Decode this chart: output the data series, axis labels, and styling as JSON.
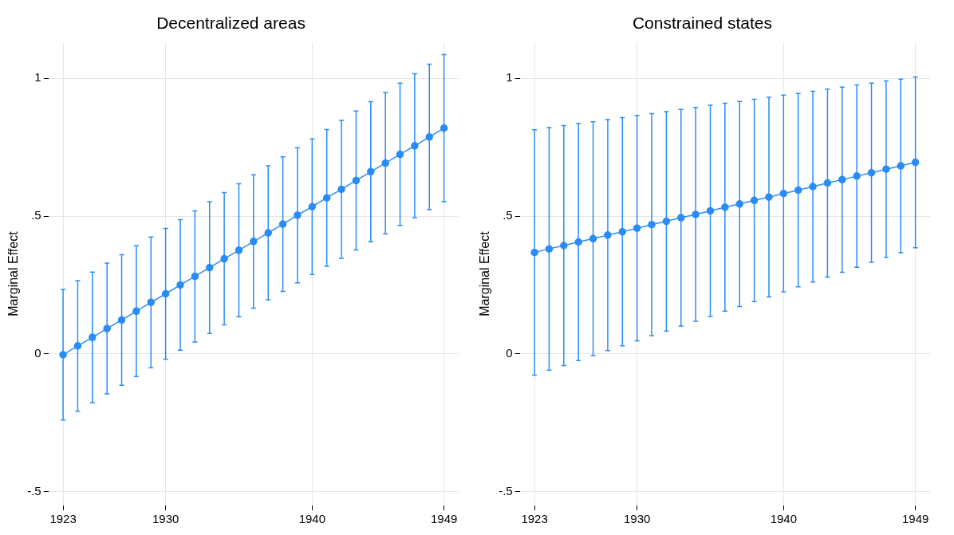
{
  "chart_data": [
    {
      "type": "line",
      "title": "Decentralized areas",
      "ylabel": "Marginal Effect",
      "x": [
        1923,
        1924,
        1925,
        1926,
        1927,
        1928,
        1929,
        1930,
        1931,
        1932,
        1933,
        1934,
        1935,
        1936,
        1937,
        1938,
        1939,
        1940,
        1941,
        1942,
        1943,
        1944,
        1945,
        1946,
        1947,
        1948,
        1949
      ],
      "series": [
        {
          "color": "#2a8cf5",
          "values": [
            -0.003,
            0.029,
            0.06,
            0.092,
            0.123,
            0.155,
            0.187,
            0.218,
            0.25,
            0.281,
            0.313,
            0.345,
            0.376,
            0.408,
            0.439,
            0.471,
            0.503,
            0.534,
            0.566,
            0.597,
            0.629,
            0.661,
            0.692,
            0.724,
            0.755,
            0.787,
            0.819
          ],
          "errors": [
            0.237,
            0.237,
            0.237,
            0.237,
            0.237,
            0.237,
            0.237,
            0.237,
            0.237,
            0.238,
            0.239,
            0.24,
            0.241,
            0.242,
            0.243,
            0.244,
            0.245,
            0.246,
            0.248,
            0.25,
            0.252,
            0.254,
            0.256,
            0.258,
            0.261,
            0.264,
            0.267
          ]
        }
      ],
      "xlim": [
        1922,
        1950
      ],
      "xticks": [
        1923,
        1930,
        1940,
        1949
      ],
      "ylim": [
        -0.55,
        1.13
      ],
      "yticks": [
        {
          "value": -0.5,
          "label": "-.5"
        },
        {
          "value": 0,
          "label": "0"
        },
        {
          "value": 0.5,
          "label": ".5"
        },
        {
          "value": 1,
          "label": "1"
        }
      ],
      "grid": true,
      "marker": "circle",
      "line_style": "solid",
      "legend": false
    },
    {
      "type": "line",
      "title": "Constrained states",
      "ylabel": "Marginal Effect",
      "x": [
        1923,
        1924,
        1925,
        1926,
        1927,
        1928,
        1929,
        1930,
        1931,
        1932,
        1933,
        1934,
        1935,
        1936,
        1937,
        1938,
        1939,
        1940,
        1941,
        1942,
        1943,
        1944,
        1945,
        1946,
        1947,
        1948,
        1949
      ],
      "series": [
        {
          "color": "#2a8cf5",
          "values": [
            0.368,
            0.381,
            0.393,
            0.406,
            0.418,
            0.431,
            0.443,
            0.456,
            0.469,
            0.481,
            0.494,
            0.506,
            0.519,
            0.532,
            0.544,
            0.557,
            0.569,
            0.582,
            0.594,
            0.607,
            0.62,
            0.632,
            0.645,
            0.657,
            0.67,
            0.682,
            0.695
          ],
          "errors": [
            0.445,
            0.44,
            0.435,
            0.43,
            0.424,
            0.419,
            0.414,
            0.409,
            0.403,
            0.398,
            0.393,
            0.388,
            0.383,
            0.377,
            0.372,
            0.367,
            0.362,
            0.357,
            0.351,
            0.346,
            0.341,
            0.336,
            0.331,
            0.325,
            0.32,
            0.315,
            0.31
          ]
        }
      ],
      "xlim": [
        1922,
        1950
      ],
      "xticks": [
        1923,
        1930,
        1940,
        1949
      ],
      "ylim": [
        -0.55,
        1.13
      ],
      "yticks": [
        {
          "value": -0.5,
          "label": "-.5"
        },
        {
          "value": 0,
          "label": "0"
        },
        {
          "value": 0.5,
          "label": ".5"
        },
        {
          "value": 1,
          "label": "1"
        }
      ],
      "grid": true,
      "marker": "circle",
      "line_style": "solid",
      "legend": false
    }
  ]
}
